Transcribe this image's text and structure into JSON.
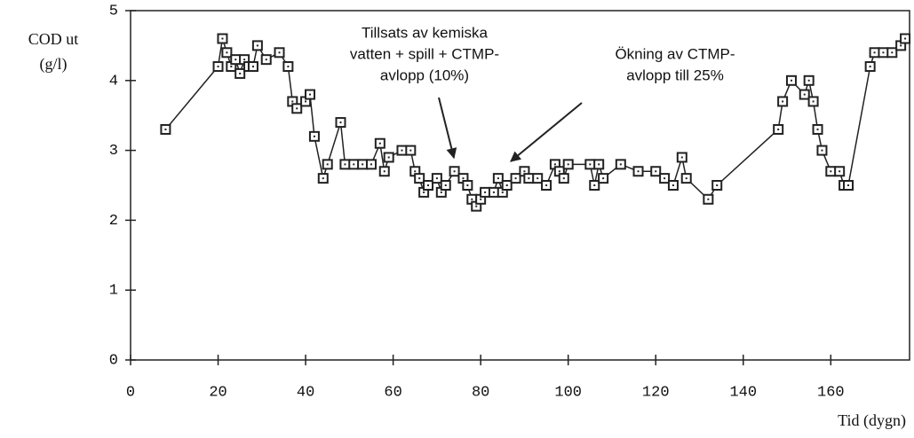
{
  "chart_data": {
    "type": "line",
    "ylabel": [
      "COD ut",
      "(g/l)"
    ],
    "xlabel": "Tid (dygn)",
    "annotations": [
      [
        "Tillsats av kemiska",
        "vatten + spill + CTMP-",
        "avlopp (10%)"
      ],
      [
        "Ökning av CTMP-",
        "avlopp till 25%"
      ]
    ],
    "color": "#222222",
    "x": [
      8,
      20,
      21,
      22,
      23,
      24,
      25,
      26,
      27,
      28,
      29,
      31,
      34,
      36,
      37,
      38,
      40,
      41,
      42,
      44,
      45,
      48,
      49,
      51,
      53,
      55,
      57,
      58,
      59,
      62,
      64,
      65,
      66,
      67,
      68,
      70,
      71,
      72,
      74,
      76,
      77,
      78,
      79,
      80,
      81,
      83,
      84,
      85,
      86,
      88,
      90,
      91,
      93,
      95,
      97,
      98,
      99,
      100,
      105,
      106,
      107,
      108,
      112,
      116,
      120,
      122,
      124,
      126,
      127,
      132,
      134,
      148,
      149,
      151,
      154,
      155,
      156,
      157,
      158,
      160,
      162,
      163,
      164,
      169,
      170,
      172,
      174,
      176,
      177
    ],
    "values": [
      3.3,
      4.2,
      4.6,
      4.4,
      4.2,
      4.3,
      4.1,
      4.3,
      4.2,
      4.2,
      4.5,
      4.3,
      4.4,
      4.2,
      3.7,
      3.6,
      3.7,
      3.8,
      3.2,
      2.6,
      2.8,
      3.4,
      2.8,
      2.8,
      2.8,
      2.8,
      3.1,
      2.7,
      2.9,
      3.0,
      3.0,
      2.7,
      2.6,
      2.4,
      2.5,
      2.6,
      2.4,
      2.5,
      2.7,
      2.6,
      2.5,
      2.3,
      2.2,
      2.3,
      2.4,
      2.4,
      2.6,
      2.4,
      2.5,
      2.6,
      2.7,
      2.6,
      2.6,
      2.5,
      2.8,
      2.7,
      2.6,
      2.8,
      2.8,
      2.5,
      2.8,
      2.6,
      2.8,
      2.7,
      2.7,
      2.6,
      2.5,
      2.9,
      2.6,
      2.3,
      2.5,
      3.3,
      3.7,
      4.0,
      3.8,
      4.0,
      3.7,
      3.3,
      3.0,
      2.7,
      2.7,
      2.5,
      2.5,
      4.2,
      4.4,
      4.4,
      4.4,
      4.5,
      4.6
    ],
    "xlim": [
      0,
      178
    ],
    "ylim": [
      0,
      5
    ],
    "xticks": [
      0,
      20,
      40,
      60,
      80,
      100,
      120,
      140,
      160
    ],
    "yticks": [
      0,
      1,
      2,
      3,
      4,
      5
    ]
  }
}
